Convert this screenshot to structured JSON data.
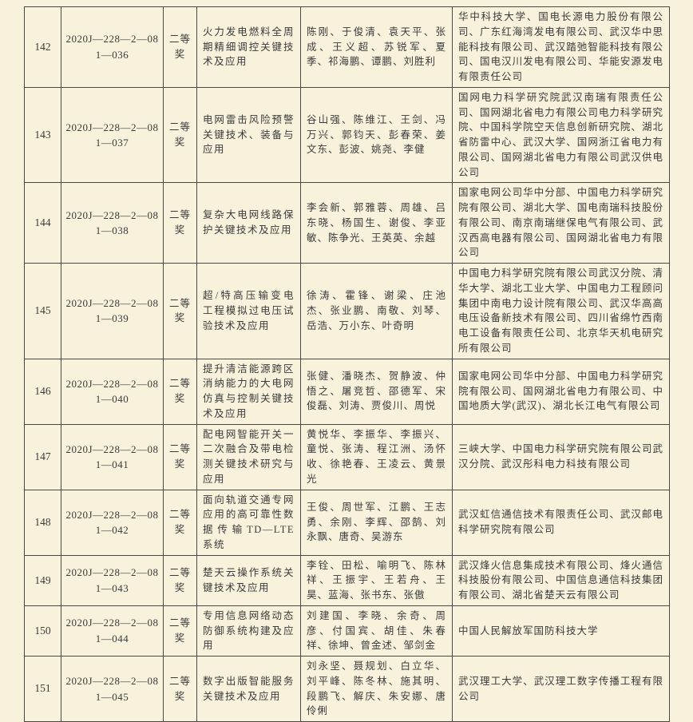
{
  "document": {
    "type": "award-list-table",
    "award_grade_repeated": "二等奖",
    "colors": {
      "paper_background": "#f8f2dd",
      "border": "#4a4a44",
      "text": "#3a3a3a"
    }
  },
  "table": {
    "rows": [
      {
        "id": "142",
        "code": "2020J—228—2—081—036",
        "award": "二等奖",
        "title": "火力发电燃料全周期精细调控关键技术及应用",
        "people": "陈刚、于俊清、袁天平、张成、王义超、苏锐军、夏季、祁海鹏、谭鹏、刘胜利",
        "orgs": "华中科技大学、国电长源电力股份有限公司、广东红海湾发电有限公司、武汉华中思能科技有限公司、武汉踏弛智能科技有限公司、国电汉川发电有限公司、华能安源发电有限责任公司"
      },
      {
        "id": "143",
        "code": "2020J—228—2—081—037",
        "award": "二等奖",
        "title": "电网雷击风险预警关键技术、装备与应用",
        "people": "谷山强、陈维江、王剑、冯万兴、郭钧天、彭春荣、姜文东、彭波、姚尧、李健",
        "orgs": "国网电力科学研究院武汉南瑞有限责任公司、国网湖北省电力有限公司电力科学研究院、中国科学院空天信息创新研究院、湖北省防雷中心、武汉大学、国网浙江省电力有限公司、国网湖北省电力有限公司武汉供电公司"
      },
      {
        "id": "144",
        "code": "2020J—228—2—081—038",
        "award": "二等奖",
        "title": "复杂大电网线路保护关键技术及应用",
        "people": "李会新、郭雅蓉、周雄、吕东晓、杨国生、谢俊、李亚敏、陈争光、王英英、余越",
        "orgs": "国家电网公司华中分部、中国电力科学研究院有限公司、湖北大学、国电南瑞科技股份有限公司、南京南瑞继保电气有限公司、武汉西高电器有限公司、国网湖北省电力有限公司"
      },
      {
        "id": "145",
        "code": "2020J—228—2—081—039",
        "award": "二等奖",
        "title": "超/特高压输变电工程模拟过电压试验技术及应用",
        "people": "徐涛、霍锋、谢梁、庄池杰、张业鹏、南敬、刘琴、岳浩、万小东、叶奇明",
        "orgs": "中国电力科学研究院有限公司武汉分院、清华大学、湖北工业大学、中国电力工程顾问集团中南电力设计院有限公司、武汉华高高电压设备新技术有限公司、四川省绵竹西南电工设备有限责任公司、北京华天机电研究所有限公司"
      },
      {
        "id": "146",
        "code": "2020J—228—2—081—040",
        "award": "二等奖",
        "title": "提升清洁能源跨区消纳能力的大电网仿真与控制关键技术及应用",
        "people": "张健、潘晓杰、贺静波、仲悟之、屠竞哲、邵德军、宋俊磊、刘涛、贾俊川、周悦",
        "orgs": "国家电网公司华中分部、中国电力科学研究院有限公司、国网湖北省电力有限公司、中国地质大学(武汉)、湖北长江电气有限公司"
      },
      {
        "id": "147",
        "code": "2020J—228—2—081—041",
        "award": "二等奖",
        "title": "配电网智能开关一二次融合及带电检测关键技术研究与应用",
        "people": "黄悦华、李振华、李振兴、童悦、张涛、程江洲、汤怀收、徐艳春、王凌云、黄景光",
        "orgs": "三峡大学、中国电力科学研究院有限公司武汉分院、武汉彤科电力科技有限公司"
      },
      {
        "id": "148",
        "code": "2020J—228—2—081—042",
        "award": "二等奖",
        "title": "面向轨道交通专网应用的高可靠性数据传输TD—LTE系统",
        "people": "王俊、周世军、江鹏、王志勇、余刚、李辉、邵鹄、刘永飘、唐奇、吴游东",
        "orgs": "武汉虹信通信技术有限责任公司、武汉邮电科学研究院有限公司"
      },
      {
        "id": "149",
        "code": "2020J—228—2—081—043",
        "award": "二等奖",
        "title": "楚天云操作系统关键技术及应用",
        "people": "李铨、田松、喻明飞、陈林祥、王振宇、王若舟、王昊、蓝海、张书东、张傲",
        "orgs": "武汉烽火信息集成技术有限公司、烽火通信科技股份有限公司、中国信息通信科技集团有限公司、湖北省楚天云有限公司"
      },
      {
        "id": "150",
        "code": "2020J—228—2—081—044",
        "award": "二等奖",
        "title": "专用信息网络动态防御系统构建及应用",
        "people": "刘建国、李晓、余奇、周彦、付国宾、胡佳、朱春祥、徐坤、曾金述、邹剑金",
        "orgs": "中国人民解放军国防科技大学"
      },
      {
        "id": "151",
        "code": "2020J—228—2—081—045",
        "award": "二等奖",
        "title": "数字出版智能服务关键技术及应用",
        "people": "刘永坚、聂规划、白立华、刘平峰、陈冬林、施其明、段鹏飞、解庆、朱安娜、唐伶俐",
        "orgs": "武汉理工大学、武汉理工数字传播工程有限公司"
      }
    ]
  }
}
